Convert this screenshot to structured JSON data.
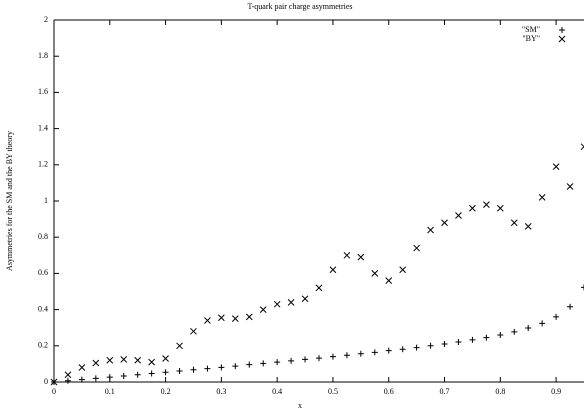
{
  "chart_data": {
    "type": "scatter",
    "title": "T-quark pair charge asymmetries",
    "x_label": "x",
    "y_label": "Asymmetries for the SM and the BY theory",
    "x": [
      0,
      0.025,
      0.05,
      0.075,
      0.1,
      0.125,
      0.15,
      0.175,
      0.2,
      0.225,
      0.25,
      0.275,
      0.3,
      0.325,
      0.35,
      0.375,
      0.4,
      0.425,
      0.45,
      0.475,
      0.5,
      0.525,
      0.55,
      0.575,
      0.6,
      0.625,
      0.65,
      0.675,
      0.7,
      0.725,
      0.75,
      0.775,
      0.8,
      0.825,
      0.85,
      0.875,
      0.9,
      0.925,
      0.95
    ],
    "series": [
      {
        "name": "\"SM\"",
        "color": "#000000",
        "marker": "plus",
        "values": [
          0,
          0.007,
          0.013,
          0.02,
          0.027,
          0.033,
          0.04,
          0.047,
          0.054,
          0.061,
          0.068,
          0.074,
          0.081,
          0.088,
          0.096,
          0.103,
          0.11,
          0.117,
          0.125,
          0.132,
          0.14,
          0.148,
          0.156,
          0.164,
          0.173,
          0.181,
          0.19,
          0.2,
          0.21,
          0.221,
          0.233,
          0.245,
          0.26,
          0.277,
          0.298,
          0.324,
          0.36,
          0.416,
          0.523
        ]
      },
      {
        "name": "\"BY\"",
        "color": "#000000",
        "marker": "cross",
        "values": [
          0,
          0.04,
          0.08,
          0.105,
          0.12,
          0.125,
          0.12,
          0.11,
          0.13,
          0.2,
          0.28,
          0.34,
          0.355,
          0.35,
          0.36,
          0.4,
          0.43,
          0.44,
          0.46,
          0.52,
          0.62,
          0.7,
          0.69,
          0.6,
          0.56,
          0.62,
          0.74,
          0.84,
          0.88,
          0.92,
          0.96,
          0.98,
          0.96,
          0.88,
          0.86,
          1.02,
          1.19,
          1.08,
          1.3
        ]
      }
    ],
    "xlim": [
      0,
      0.95
    ],
    "xticks": [
      0,
      0.1,
      0.2,
      0.3,
      0.4,
      0.5,
      0.6,
      0.7,
      0.8,
      0.9
    ],
    "ylim": [
      0,
      2
    ],
    "yticks": [
      0,
      0.2,
      0.4,
      0.6,
      0.8,
      1,
      1.2,
      1.4,
      1.6,
      1.8,
      2
    ],
    "grid": false,
    "legend": "top-right"
  }
}
